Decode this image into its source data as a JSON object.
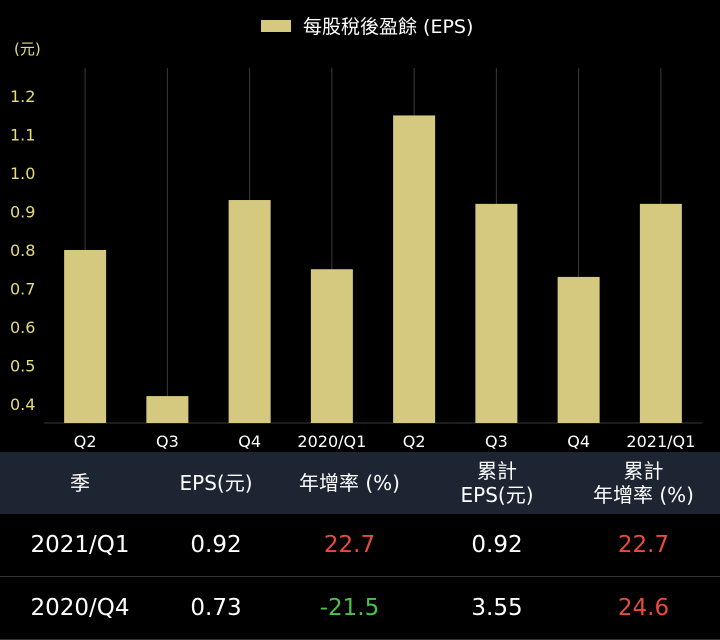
{
  "chart_data": {
    "type": "bar",
    "legend": "每股稅後盈餘 (EPS)",
    "legend_position": "top",
    "unit_label": "(元)",
    "categories": [
      "Q2",
      "Q3",
      "Q4",
      "2020/Q1",
      "Q2",
      "Q3",
      "Q4",
      "2021/Q1"
    ],
    "series": [
      {
        "name": "每股稅後盈餘 (EPS)",
        "values": [
          0.8,
          0.42,
          0.93,
          0.75,
          1.15,
          0.92,
          0.73,
          0.92
        ]
      }
    ],
    "ylim": [
      0.35,
      1.25
    ],
    "yticks": [
      "0.4",
      "0.5",
      "0.6",
      "0.7",
      "0.8",
      "0.9",
      "1.0",
      "1.1",
      "1.2"
    ],
    "grid": "vertical",
    "colors": {
      "bar": "#d4c97f",
      "tick_y": "#e8dc7a",
      "tick_x": "#ffffff",
      "grid": "#3a3a3a"
    }
  },
  "table": {
    "headers": [
      {
        "line1": "季",
        "line2": ""
      },
      {
        "line1": "EPS(元)",
        "line2": ""
      },
      {
        "line1": "年增率 (%)",
        "line2": ""
      },
      {
        "line1": "累計",
        "line2": "EPS(元)"
      },
      {
        "line1": "累計",
        "line2": "年增率 (%)"
      }
    ],
    "rows": [
      {
        "season": "2021/Q1",
        "eps": "0.92",
        "yoy": "22.7",
        "cum_eps": "0.92",
        "cum_yoy": "22.7",
        "yoy_sign": "pos",
        "cum_yoy_sign": "pos"
      },
      {
        "season": "2020/Q4",
        "eps": "0.73",
        "yoy": "-21.5",
        "cum_eps": "3.55",
        "cum_yoy": "24.6",
        "yoy_sign": "neg",
        "cum_yoy_sign": "pos"
      }
    ],
    "colors": {
      "header_bg": "#1d2533",
      "positive": "#e84a3c",
      "negative": "#4cc24a"
    }
  }
}
